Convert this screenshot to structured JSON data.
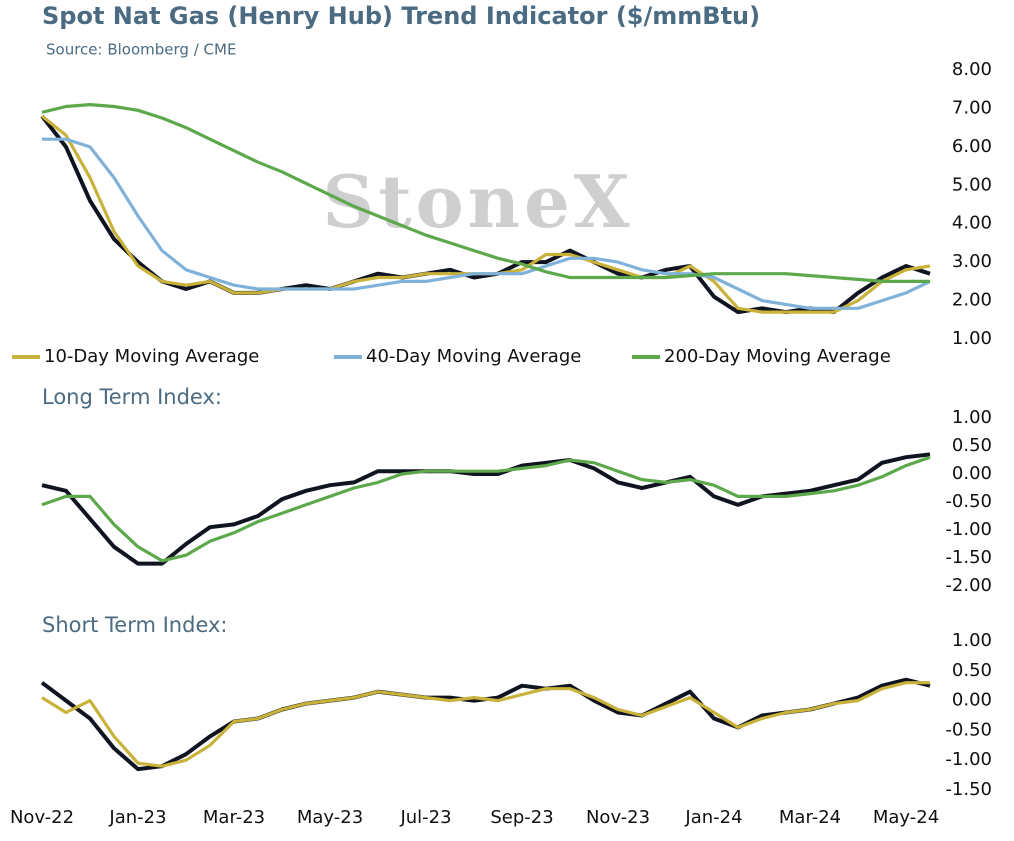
{
  "chart_data": [
    {
      "type": "line",
      "title": "Spot Nat Gas (Henry Hub) Trend Indicator ($/mmBtu)",
      "subtitle": "Source: Bloomberg / CME",
      "watermark": "StoneX",
      "ylim": [
        1,
        8
      ],
      "yticks": [
        {
          "value": 8,
          "label": "8.00"
        },
        {
          "value": 7,
          "label": "7.00"
        },
        {
          "value": 6,
          "label": "6.00"
        },
        {
          "value": 5,
          "label": "5.00"
        },
        {
          "value": 4,
          "label": "4.00"
        },
        {
          "value": 3,
          "label": "3.00"
        },
        {
          "value": 2,
          "label": "2.00"
        },
        {
          "value": 1,
          "label": "1.00"
        }
      ],
      "legend": "bottom",
      "series": [
        {
          "color": "#0f1420",
          "values": [
            6.8,
            6.0,
            4.6,
            3.6,
            3.0,
            2.5,
            2.3,
            2.5,
            2.2,
            2.2,
            2.3,
            2.4,
            2.3,
            2.5,
            2.7,
            2.6,
            2.7,
            2.8,
            2.6,
            2.7,
            3.0,
            3.0,
            3.3,
            3.0,
            2.7,
            2.6,
            2.8,
            2.9,
            2.1,
            1.7,
            1.8,
            1.7,
            1.8,
            1.7,
            2.2,
            2.6,
            2.9,
            2.7
          ]
        },
        {
          "name": "10-Day Moving Average",
          "color": "#c8b23a",
          "values": [
            6.8,
            6.3,
            5.2,
            3.8,
            2.9,
            2.5,
            2.4,
            2.5,
            2.2,
            2.2,
            2.3,
            2.3,
            2.3,
            2.5,
            2.6,
            2.6,
            2.7,
            2.7,
            2.7,
            2.7,
            2.8,
            3.2,
            3.2,
            3.0,
            2.8,
            2.6,
            2.6,
            2.9,
            2.5,
            1.8,
            1.7,
            1.7,
            1.7,
            1.7,
            2.0,
            2.5,
            2.8,
            2.9
          ]
        },
        {
          "name": "40-Day Moving Average",
          "color": "#80b2d9",
          "values": [
            6.2,
            6.2,
            6.0,
            5.2,
            4.2,
            3.3,
            2.8,
            2.6,
            2.4,
            2.3,
            2.3,
            2.3,
            2.3,
            2.3,
            2.4,
            2.5,
            2.5,
            2.6,
            2.7,
            2.7,
            2.7,
            2.9,
            3.1,
            3.1,
            3.0,
            2.8,
            2.7,
            2.7,
            2.6,
            2.3,
            2.0,
            1.9,
            1.8,
            1.8,
            1.8,
            2.0,
            2.2,
            2.5
          ]
        },
        {
          "name": "200-Day Moving Average",
          "color": "#5ca84b",
          "values": [
            6.9,
            7.05,
            7.1,
            7.05,
            6.95,
            6.75,
            6.5,
            6.2,
            5.9,
            5.6,
            5.35,
            5.05,
            4.75,
            4.45,
            4.2,
            3.95,
            3.7,
            3.5,
            3.3,
            3.1,
            2.95,
            2.75,
            2.6,
            2.6,
            2.6,
            2.6,
            2.6,
            2.65,
            2.7,
            2.7,
            2.7,
            2.7,
            2.65,
            2.6,
            2.55,
            2.5,
            2.5,
            2.5
          ]
        }
      ]
    },
    {
      "type": "line",
      "title": "Long Term Index:",
      "ylim": [
        -2,
        1
      ],
      "yticks": [
        {
          "value": 1,
          "label": "1.00"
        },
        {
          "value": 0.5,
          "label": "0.50"
        },
        {
          "value": 0,
          "label": "0.00"
        },
        {
          "value": -0.5,
          "label": "-0.50"
        },
        {
          "value": -1,
          "label": "-1.00"
        },
        {
          "value": -1.5,
          "label": "-1.50"
        },
        {
          "value": -2,
          "label": "-2.00"
        }
      ],
      "series": [
        {
          "color": "#0f1420",
          "values": [
            -0.2,
            -0.3,
            -0.8,
            -1.3,
            -1.6,
            -1.6,
            -1.25,
            -0.95,
            -0.9,
            -0.75,
            -0.45,
            -0.3,
            -0.2,
            -0.15,
            0.05,
            0.05,
            0.05,
            0.05,
            0.0,
            0.0,
            0.15,
            0.2,
            0.25,
            0.1,
            -0.15,
            -0.25,
            -0.15,
            -0.05,
            -0.4,
            -0.55,
            -0.4,
            -0.35,
            -0.3,
            -0.2,
            -0.1,
            0.2,
            0.3,
            0.35
          ]
        },
        {
          "color": "#5ca84b",
          "values": [
            -0.55,
            -0.4,
            -0.4,
            -0.9,
            -1.3,
            -1.55,
            -1.45,
            -1.2,
            -1.05,
            -0.85,
            -0.7,
            -0.55,
            -0.4,
            -0.25,
            -0.15,
            0.0,
            0.05,
            0.05,
            0.05,
            0.05,
            0.1,
            0.15,
            0.25,
            0.2,
            0.05,
            -0.1,
            -0.15,
            -0.1,
            -0.2,
            -0.4,
            -0.4,
            -0.4,
            -0.35,
            -0.3,
            -0.2,
            -0.05,
            0.15,
            0.3
          ]
        }
      ]
    },
    {
      "type": "line",
      "title": "Short Term Index:",
      "ylim": [
        -1.5,
        1
      ],
      "yticks": [
        {
          "value": 1,
          "label": "1.00"
        },
        {
          "value": 0.5,
          "label": "0.50"
        },
        {
          "value": 0,
          "label": "0.00"
        },
        {
          "value": -0.5,
          "label": "-0.50"
        },
        {
          "value": -1,
          "label": "-1.00"
        },
        {
          "value": -1.5,
          "label": "-1.50"
        }
      ],
      "categories": [
        "Nov-22",
        null,
        null,
        null,
        "Jan-23",
        null,
        null,
        null,
        "Mar-23",
        null,
        null,
        null,
        "May-23",
        null,
        null,
        null,
        "Jul-23",
        null,
        null,
        null,
        "Sep-23",
        null,
        null,
        null,
        "Nov-23",
        null,
        null,
        null,
        "Jan-24",
        null,
        null,
        null,
        "Mar-24",
        null,
        null,
        null,
        "May-24",
        null
      ],
      "series": [
        {
          "color": "#0f1420",
          "values": [
            0.3,
            0.0,
            -0.3,
            -0.8,
            -1.15,
            -1.1,
            -0.9,
            -0.6,
            -0.35,
            -0.3,
            -0.15,
            -0.05,
            0.0,
            0.05,
            0.15,
            0.1,
            0.05,
            0.05,
            0.0,
            0.05,
            0.25,
            0.2,
            0.25,
            0.0,
            -0.2,
            -0.25,
            -0.05,
            0.15,
            -0.3,
            -0.45,
            -0.25,
            -0.2,
            -0.15,
            -0.05,
            0.05,
            0.25,
            0.35,
            0.25
          ]
        },
        {
          "color": "#c8b23a",
          "values": [
            0.05,
            -0.2,
            0.0,
            -0.6,
            -1.05,
            -1.1,
            -1.0,
            -0.75,
            -0.35,
            -0.3,
            -0.15,
            -0.05,
            0.0,
            0.05,
            0.15,
            0.1,
            0.05,
            0.0,
            0.05,
            0.0,
            0.1,
            0.2,
            0.2,
            0.05,
            -0.15,
            -0.25,
            -0.1,
            0.05,
            -0.2,
            -0.45,
            -0.3,
            -0.2,
            -0.15,
            -0.05,
            0.0,
            0.2,
            0.3,
            0.3
          ]
        }
      ]
    }
  ]
}
